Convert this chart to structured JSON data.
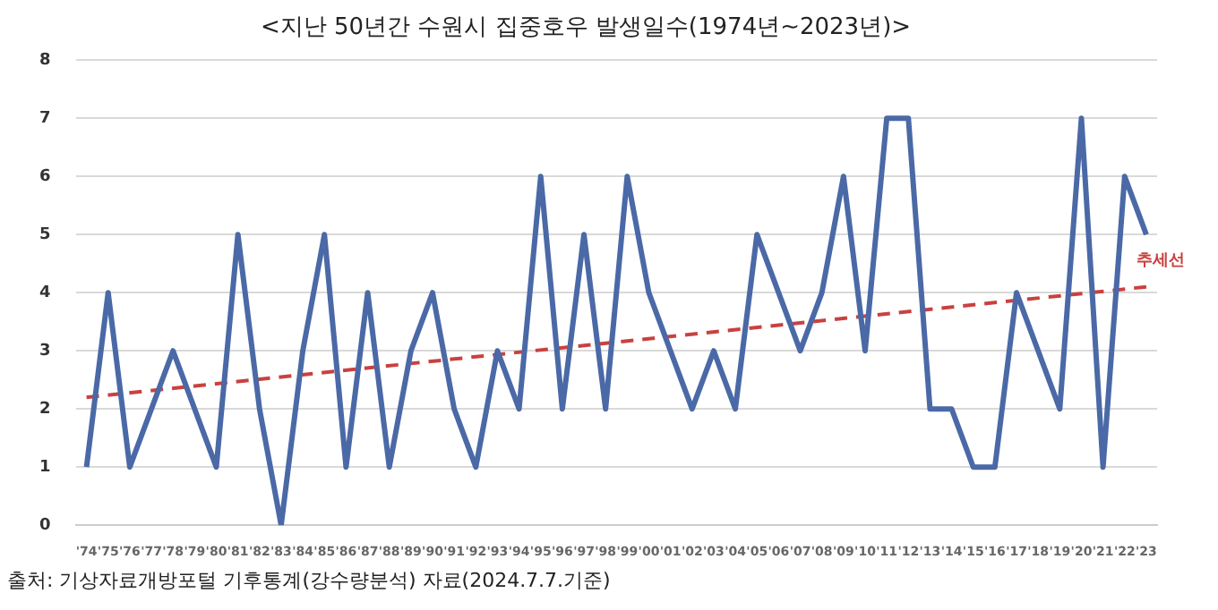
{
  "chart_data": {
    "type": "line",
    "title": "<지난 50년간 수원시 집중호우 발생일수(1974년~2023년)>",
    "categories": [
      "'74",
      "'75",
      "'76",
      "'77",
      "'78",
      "'79",
      "'80",
      "'81",
      "'82",
      "'83",
      "'84",
      "'85",
      "'86",
      "'87",
      "'88",
      "'89",
      "'90",
      "'91",
      "'92",
      "'93",
      "'94",
      "'95",
      "'96",
      "'97",
      "'98",
      "'99",
      "'00",
      "'01",
      "'02",
      "'03",
      "'04",
      "'05",
      "'06",
      "'07",
      "'08",
      "'09",
      "'10",
      "'11",
      "'12",
      "'13",
      "'14",
      "'15",
      "'16",
      "'17",
      "'18",
      "'19",
      "'20",
      "'21",
      "'22",
      "'23"
    ],
    "series": [
      {
        "color": "#4a69a6",
        "values": [
          1,
          4,
          1,
          2,
          3,
          2,
          1,
          5,
          2,
          0,
          3,
          5,
          1,
          4,
          1,
          3,
          4,
          2,
          1,
          3,
          2,
          6,
          2,
          5,
          2,
          6,
          4,
          3,
          2,
          3,
          2,
          5,
          4,
          3,
          4,
          6,
          3,
          7,
          7,
          2,
          2,
          1,
          1,
          4,
          3,
          2,
          7,
          1,
          6,
          5
        ]
      },
      {
        "name": "추세선",
        "type": "line",
        "color": "#c9413f",
        "line_style": "dashed",
        "x": [
          "'74",
          "'23"
        ],
        "values": [
          2.2,
          4.1
        ]
      }
    ],
    "ylim": [
      0,
      8
    ],
    "yticks": [
      0,
      1,
      2,
      3,
      4,
      5,
      6,
      7,
      8
    ],
    "grid": "y",
    "legend": false,
    "marker": "none",
    "line_style": "solid",
    "annotations": [
      "출처: 기상자료개방포털 기후통계(강수량분석) 자료(2024.7.7.기준)"
    ]
  }
}
